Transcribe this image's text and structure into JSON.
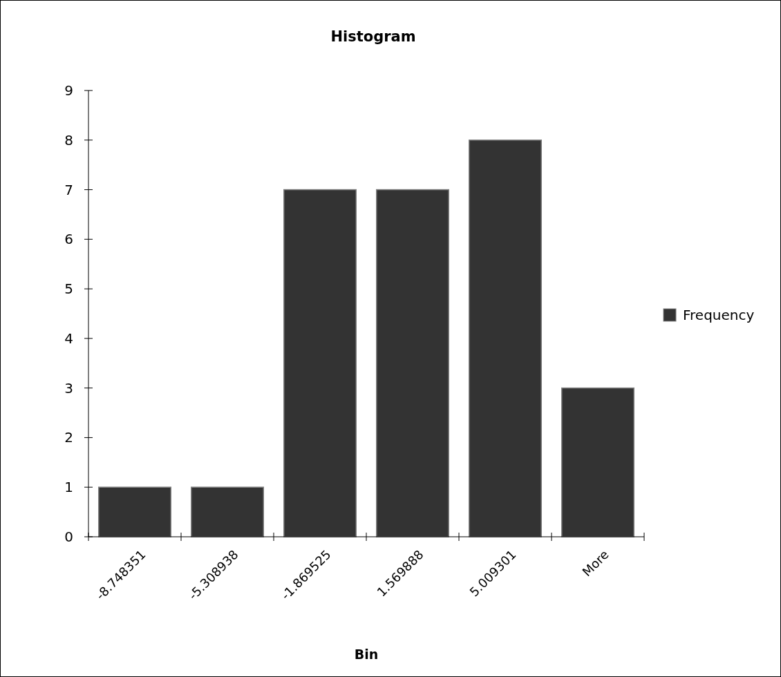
{
  "chart_data": {
    "type": "bar",
    "title": "Histogram",
    "xlabel": "Bin",
    "categories": [
      "-8.748351",
      "-5.308938",
      "-1.869525",
      "1.569888",
      "5.009301",
      "More"
    ],
    "series": [
      {
        "name": "Frequency",
        "color": "#333333",
        "values": [
          1,
          1,
          7,
          7,
          8,
          3
        ]
      }
    ],
    "ylim": [
      0,
      9
    ],
    "yticks": [
      0,
      1,
      2,
      3,
      4,
      5,
      6,
      7,
      8,
      9
    ],
    "grid": false,
    "legend": "right"
  }
}
